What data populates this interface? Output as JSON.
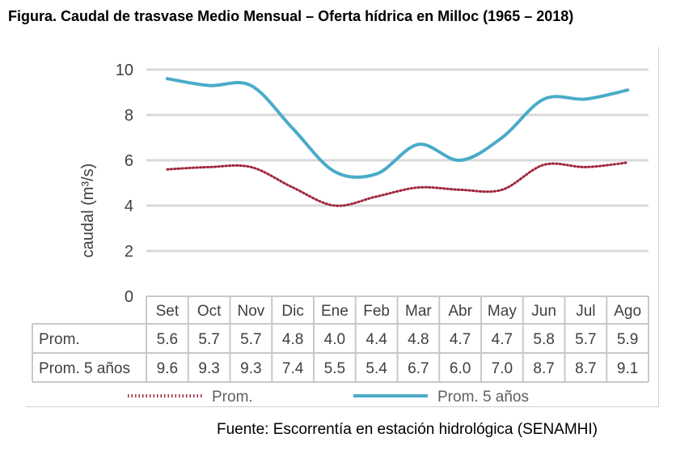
{
  "figure_title": "Figura. Caudal de trasvase Medio Mensual – Oferta hídrica en Milloc (1965 – 2018)",
  "source": "Fuente: Escorrentía en estación hidrológica (SENAMHI)",
  "colors": {
    "prom": "#a0283c",
    "prom5": "#4aabc9",
    "grid": "#d9d9d9",
    "table_border": "#c9c9c9",
    "text": "#404040"
  },
  "chart_data": {
    "type": "line",
    "ylabel": "caudal (m³/s)",
    "xlabel": "",
    "ylim": [
      0,
      10
    ],
    "yticks": [
      "0",
      "2",
      "4",
      "6",
      "8",
      "10"
    ],
    "grid": true,
    "legend_position": "bottom",
    "categories": [
      "Set",
      "Oct",
      "Nov",
      "Dic",
      "Ene",
      "Feb",
      "Mar",
      "Abr",
      "May",
      "Jun",
      "Jul",
      "Ago"
    ],
    "series": [
      {
        "name": "Prom.",
        "style": "dotted",
        "color": "#a0283c",
        "values": [
          5.6,
          5.7,
          5.7,
          4.8,
          4.0,
          4.4,
          4.8,
          4.7,
          4.7,
          5.8,
          5.7,
          5.9
        ],
        "labels": [
          "5.6",
          "5.7",
          "5.7",
          "4.8",
          "4.0",
          "4.4",
          "4.8",
          "4.7",
          "4.7",
          "5.8",
          "5.7",
          "5.9"
        ]
      },
      {
        "name": "Prom. 5 años",
        "style": "solid",
        "color": "#4aabc9",
        "values": [
          9.6,
          9.3,
          9.3,
          7.4,
          5.5,
          5.4,
          6.7,
          6.0,
          7.0,
          8.7,
          8.7,
          9.1
        ],
        "labels": [
          "9.6",
          "9.3",
          "9.3",
          "7.4",
          "5.5",
          "5.4",
          "6.7",
          "6.0",
          "7.0",
          "8.7",
          "8.7",
          "9.1"
        ]
      }
    ]
  }
}
